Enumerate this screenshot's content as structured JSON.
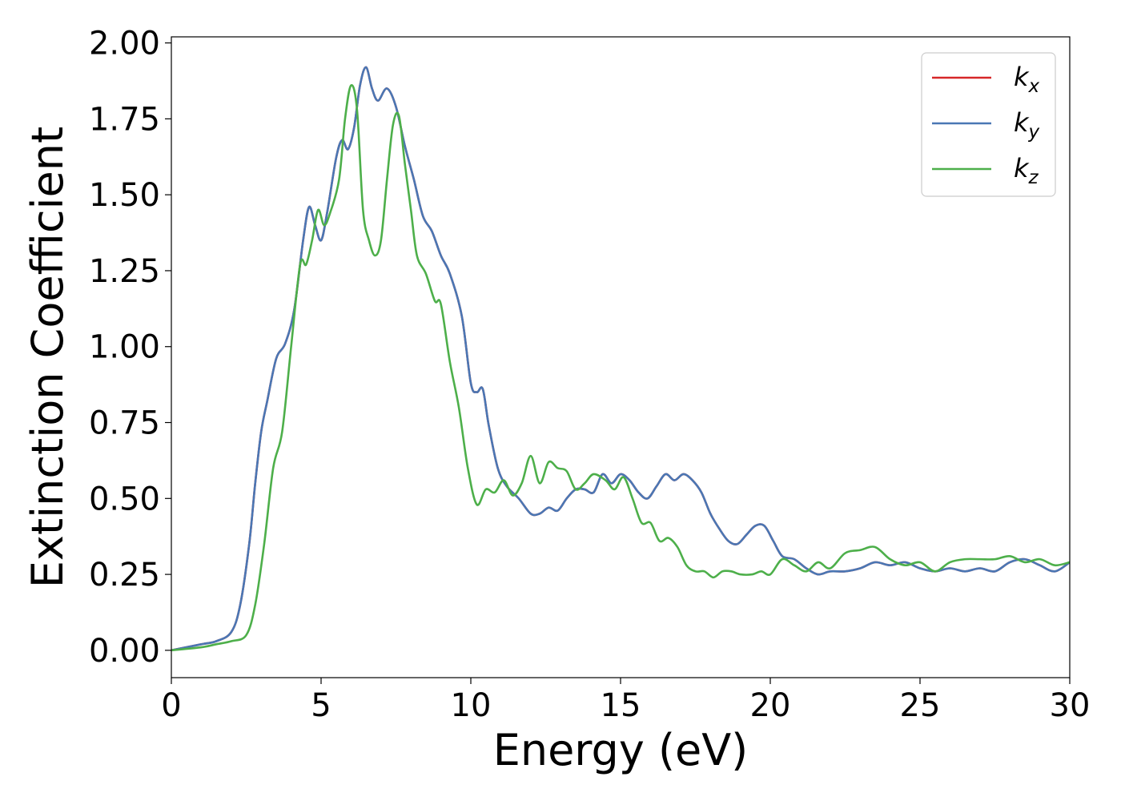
{
  "chart_data": {
    "type": "line",
    "xlabel": "Energy (eV)",
    "ylabel": "Extinction Coefficient",
    "xlim": [
      0,
      30
    ],
    "ylim": [
      -0.09,
      2.02
    ],
    "xticks": [
      "0",
      "5",
      "10",
      "15",
      "20",
      "25",
      "30"
    ],
    "yticks": [
      "0.00",
      "0.25",
      "0.50",
      "0.75",
      "1.00",
      "1.25",
      "1.50",
      "1.75",
      "2.00"
    ],
    "grid": false,
    "legend_position": "top-right",
    "series": [
      {
        "name": "k_x",
        "legend_base": "k",
        "legend_sub": "x",
        "color": "#d62728",
        "x": [
          0,
          1,
          1.5,
          2,
          2.3,
          2.6,
          2.8,
          3.0,
          3.2,
          3.5,
          3.8,
          4.1,
          4.4,
          4.6,
          4.8,
          5.0,
          5.2,
          5.5,
          5.7,
          5.9,
          6.1,
          6.3,
          6.5,
          6.7,
          6.9,
          7.2,
          7.5,
          7.8,
          8.1,
          8.4,
          8.7,
          9.0,
          9.3,
          9.7,
          10.0,
          10.2,
          10.4,
          10.6,
          10.9,
          11.2,
          11.6,
          12.0,
          12.3,
          12.6,
          12.9,
          13.2,
          13.5,
          13.8,
          14.1,
          14.4,
          14.7,
          15.0,
          15.3,
          15.6,
          15.9,
          16.2,
          16.5,
          16.8,
          17.1,
          17.4,
          17.7,
          18.0,
          18.3,
          18.6,
          18.9,
          19.2,
          19.5,
          19.8,
          20.1,
          20.4,
          20.8,
          21.2,
          21.6,
          22.0,
          22.5,
          23.0,
          23.5,
          24.0,
          24.5,
          25.0,
          25.5,
          26.0,
          26.5,
          27.0,
          27.5,
          28.0,
          28.5,
          29.0,
          29.5,
          30.0
        ],
        "y": [
          0.0,
          0.02,
          0.03,
          0.06,
          0.15,
          0.35,
          0.55,
          0.72,
          0.82,
          0.96,
          1.01,
          1.12,
          1.35,
          1.46,
          1.4,
          1.35,
          1.44,
          1.62,
          1.68,
          1.65,
          1.72,
          1.86,
          1.92,
          1.85,
          1.81,
          1.85,
          1.79,
          1.66,
          1.55,
          1.43,
          1.38,
          1.3,
          1.24,
          1.1,
          0.88,
          0.85,
          0.86,
          0.74,
          0.6,
          0.54,
          0.5,
          0.45,
          0.45,
          0.47,
          0.46,
          0.5,
          0.53,
          0.53,
          0.52,
          0.58,
          0.55,
          0.58,
          0.56,
          0.52,
          0.5,
          0.54,
          0.58,
          0.56,
          0.58,
          0.56,
          0.52,
          0.45,
          0.4,
          0.36,
          0.35,
          0.38,
          0.41,
          0.41,
          0.36,
          0.31,
          0.3,
          0.27,
          0.25,
          0.26,
          0.26,
          0.27,
          0.29,
          0.28,
          0.29,
          0.27,
          0.26,
          0.27,
          0.26,
          0.27,
          0.26,
          0.29,
          0.3,
          0.28,
          0.26,
          0.29
        ]
      },
      {
        "name": "k_y",
        "legend_base": "k",
        "legend_sub": "y",
        "color": "#4a77b4",
        "x": [
          0,
          1,
          1.5,
          2,
          2.3,
          2.6,
          2.8,
          3.0,
          3.2,
          3.5,
          3.8,
          4.1,
          4.4,
          4.6,
          4.8,
          5.0,
          5.2,
          5.5,
          5.7,
          5.9,
          6.1,
          6.3,
          6.5,
          6.7,
          6.9,
          7.2,
          7.5,
          7.8,
          8.1,
          8.4,
          8.7,
          9.0,
          9.3,
          9.7,
          10.0,
          10.2,
          10.4,
          10.6,
          10.9,
          11.2,
          11.6,
          12.0,
          12.3,
          12.6,
          12.9,
          13.2,
          13.5,
          13.8,
          14.1,
          14.4,
          14.7,
          15.0,
          15.3,
          15.6,
          15.9,
          16.2,
          16.5,
          16.8,
          17.1,
          17.4,
          17.7,
          18.0,
          18.3,
          18.6,
          18.9,
          19.2,
          19.5,
          19.8,
          20.1,
          20.4,
          20.8,
          21.2,
          21.6,
          22.0,
          22.5,
          23.0,
          23.5,
          24.0,
          24.5,
          25.0,
          25.5,
          26.0,
          26.5,
          27.0,
          27.5,
          28.0,
          28.5,
          29.0,
          29.5,
          30.0
        ],
        "y": [
          0.0,
          0.02,
          0.03,
          0.06,
          0.15,
          0.35,
          0.55,
          0.72,
          0.82,
          0.96,
          1.01,
          1.12,
          1.35,
          1.46,
          1.4,
          1.35,
          1.44,
          1.62,
          1.68,
          1.65,
          1.72,
          1.86,
          1.92,
          1.85,
          1.81,
          1.85,
          1.79,
          1.66,
          1.55,
          1.43,
          1.38,
          1.3,
          1.24,
          1.1,
          0.88,
          0.85,
          0.86,
          0.74,
          0.6,
          0.54,
          0.5,
          0.45,
          0.45,
          0.47,
          0.46,
          0.5,
          0.53,
          0.53,
          0.52,
          0.58,
          0.55,
          0.58,
          0.56,
          0.52,
          0.5,
          0.54,
          0.58,
          0.56,
          0.58,
          0.56,
          0.52,
          0.45,
          0.4,
          0.36,
          0.35,
          0.38,
          0.41,
          0.41,
          0.36,
          0.31,
          0.3,
          0.27,
          0.25,
          0.26,
          0.26,
          0.27,
          0.29,
          0.28,
          0.29,
          0.27,
          0.26,
          0.27,
          0.26,
          0.27,
          0.26,
          0.29,
          0.3,
          0.28,
          0.26,
          0.29
        ]
      },
      {
        "name": "k_z",
        "legend_base": "k",
        "legend_sub": "z",
        "color": "#4daf4a",
        "x": [
          0,
          1,
          1.5,
          2,
          2.5,
          2.8,
          3.1,
          3.4,
          3.7,
          4.0,
          4.3,
          4.5,
          4.7,
          4.9,
          5.1,
          5.3,
          5.6,
          5.8,
          6.0,
          6.2,
          6.4,
          6.6,
          6.8,
          7.0,
          7.2,
          7.4,
          7.6,
          7.8,
          8.0,
          8.2,
          8.5,
          8.8,
          9.0,
          9.3,
          9.6,
          9.9,
          10.2,
          10.5,
          10.8,
          11.1,
          11.4,
          11.7,
          12.0,
          12.3,
          12.6,
          12.9,
          13.2,
          13.5,
          13.8,
          14.1,
          14.5,
          14.8,
          15.1,
          15.4,
          15.7,
          16.0,
          16.3,
          16.6,
          16.9,
          17.2,
          17.5,
          17.8,
          18.1,
          18.4,
          18.7,
          19.0,
          19.4,
          19.7,
          20.0,
          20.4,
          20.8,
          21.2,
          21.6,
          22.0,
          22.5,
          23.0,
          23.5,
          24.0,
          24.5,
          25.0,
          25.5,
          26.0,
          26.5,
          27.0,
          27.5,
          28.0,
          28.5,
          29.0,
          29.5,
          30.0
        ],
        "y": [
          0.0,
          0.01,
          0.02,
          0.03,
          0.05,
          0.15,
          0.35,
          0.6,
          0.72,
          1.0,
          1.27,
          1.27,
          1.35,
          1.45,
          1.4,
          1.44,
          1.55,
          1.75,
          1.86,
          1.78,
          1.45,
          1.35,
          1.3,
          1.35,
          1.55,
          1.73,
          1.76,
          1.6,
          1.45,
          1.3,
          1.24,
          1.15,
          1.14,
          0.95,
          0.8,
          0.6,
          0.48,
          0.53,
          0.52,
          0.56,
          0.51,
          0.55,
          0.64,
          0.55,
          0.62,
          0.6,
          0.59,
          0.53,
          0.55,
          0.58,
          0.56,
          0.53,
          0.57,
          0.5,
          0.42,
          0.42,
          0.36,
          0.37,
          0.34,
          0.28,
          0.26,
          0.26,
          0.24,
          0.26,
          0.26,
          0.25,
          0.25,
          0.26,
          0.25,
          0.3,
          0.28,
          0.26,
          0.29,
          0.27,
          0.32,
          0.33,
          0.34,
          0.3,
          0.28,
          0.29,
          0.26,
          0.29,
          0.3,
          0.3,
          0.3,
          0.31,
          0.29,
          0.3,
          0.28,
          0.29
        ]
      }
    ]
  }
}
